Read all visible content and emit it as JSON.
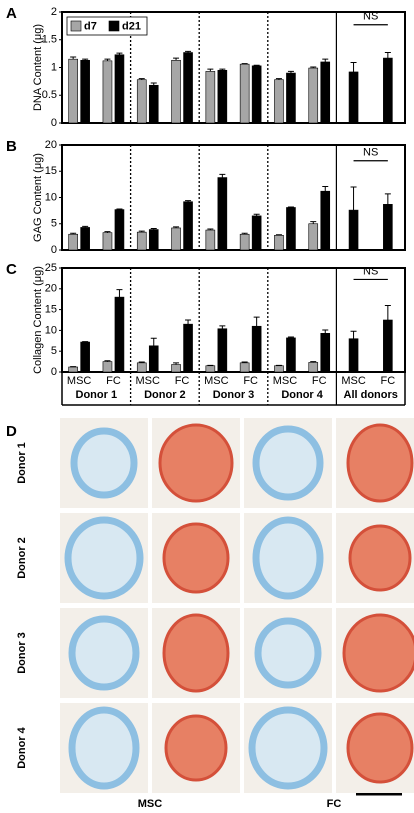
{
  "chart_data": [
    {
      "type": "bar",
      "panel_label": "A",
      "ylabel": "DNA Content (μg)",
      "categories": [
        null,
        null,
        null,
        null,
        null,
        null,
        null,
        null,
        null,
        null
      ],
      "ylim": [
        0,
        2
      ],
      "yticks": [
        0,
        0.5,
        1,
        1.5,
        2
      ],
      "legend": "upper left",
      "annotation": "NS",
      "series": [
        {
          "name": "d7",
          "color": "#a6a6a6",
          "values": [
            1.15,
            1.12,
            0.78,
            1.13,
            0.93,
            1.06,
            0.78,
            0.99,
            null,
            null
          ],
          "errors": [
            0.04,
            0.03,
            0.02,
            0.04,
            0.04,
            0.01,
            0.02,
            0.02,
            null,
            null
          ]
        },
        {
          "name": "d21",
          "color": "#000000",
          "values": [
            1.13,
            1.23,
            0.68,
            1.27,
            0.95,
            1.03,
            0.9,
            1.1,
            0.92,
            1.17
          ],
          "errors": [
            0.02,
            0.03,
            0.04,
            0.02,
            0.02,
            0.01,
            0.03,
            0.05,
            0.17,
            0.1
          ]
        }
      ]
    },
    {
      "type": "bar",
      "panel_label": "B",
      "ylabel": "GAG Content (μg)",
      "categories": [
        null,
        null,
        null,
        null,
        null,
        null,
        null,
        null,
        null,
        null
      ],
      "ylim": [
        0,
        20
      ],
      "yticks": [
        0,
        5,
        10,
        15,
        20
      ],
      "annotation": "NS",
      "series": [
        {
          "color": "#a6a6a6",
          "values": [
            3,
            3.3,
            3.4,
            4.2,
            3.8,
            3,
            2.8,
            5,
            null,
            null
          ],
          "errors": [
            0.2,
            0.2,
            0.2,
            0.2,
            0.2,
            0.2,
            0.1,
            0.4,
            null,
            null
          ]
        },
        {
          "color": "#000000",
          "values": [
            4.3,
            7.7,
            3.9,
            9.2,
            13.8,
            6.5,
            8.1,
            11.2,
            7.6,
            8.7
          ],
          "errors": [
            0.2,
            0.1,
            0.2,
            0.2,
            0.6,
            0.3,
            0.1,
            0.9,
            4.4,
            2
          ]
        }
      ]
    },
    {
      "type": "bar",
      "panel_label": "C",
      "ylabel": "Collagen Content (μg)",
      "categories": [
        "MSC",
        "FC",
        "MSC",
        "FC",
        "MSC",
        "FC",
        "MSC",
        "FC",
        "MSC",
        "FC"
      ],
      "groups": [
        "Donor 1",
        "Donor 2",
        "Donor 3",
        "Donor 4",
        "All donors"
      ],
      "ylim": [
        0,
        25
      ],
      "yticks": [
        0,
        5,
        10,
        15,
        20,
        25
      ],
      "annotation": "NS",
      "series": [
        {
          "color": "#a6a6a6",
          "values": [
            1.2,
            2.5,
            2.2,
            1.8,
            1.5,
            2.2,
            1.5,
            2.3,
            null,
            null
          ],
          "errors": [
            0.1,
            0.2,
            0.2,
            0.4,
            0.1,
            0.2,
            0.1,
            0.2,
            null,
            null
          ]
        },
        {
          "color": "#000000",
          "values": [
            7.2,
            18,
            6.3,
            11.5,
            10.4,
            11,
            8.2,
            9.3,
            8,
            12.5
          ],
          "errors": [
            0.1,
            1.8,
            1.8,
            1,
            0.7,
            2.2,
            0.2,
            0.8,
            1.8,
            3.5
          ]
        }
      ]
    }
  ],
  "panel_d": {
    "label": "D",
    "rows": [
      "Donor 1",
      "Donor 2",
      "Donor 3",
      "Donor 4"
    ],
    "columns": [
      "MSC",
      "FC"
    ]
  }
}
